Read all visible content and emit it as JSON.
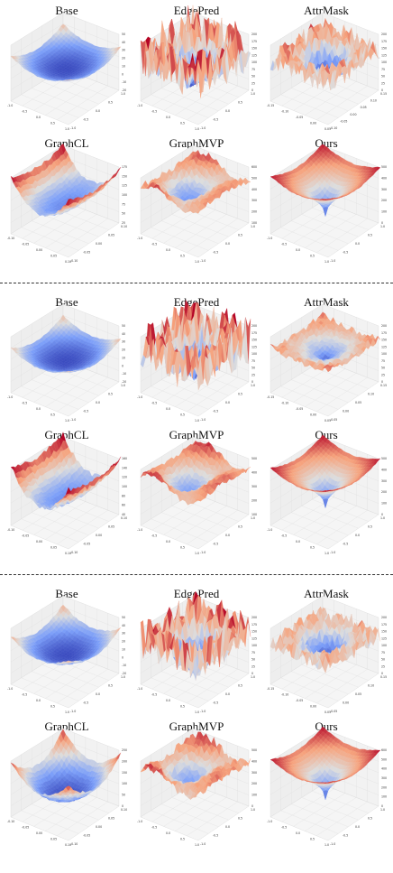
{
  "sections": [
    {
      "panels": [
        {
          "title": "Base",
          "shape": "bowl",
          "depth": 0.35,
          "rough": 0.05,
          "rimRed": 0.25,
          "yticks": [
            "50",
            "40",
            "30",
            "20",
            "10",
            "0",
            "-10",
            "-20"
          ],
          "xticks": [
            "-1.0",
            "-0.5",
            "0.0",
            "0.5",
            "1.0"
          ],
          "zticks": [
            "1.0",
            "0.5",
            "0.0",
            "-0.5",
            "-1.0"
          ]
        },
        {
          "title": "EdgePred",
          "shape": "spiky",
          "depth": 0.85,
          "rough": 0.9,
          "rimRed": 1.0,
          "yticks": [
            "200",
            "175",
            "150",
            "125",
            "100",
            "75",
            "50",
            "25",
            "0"
          ],
          "xticks": [
            "-1.0",
            "-0.5",
            "0.0",
            "0.5",
            "1.0"
          ],
          "zticks": [
            "1.0",
            "0.5",
            "0.0",
            "-0.5",
            "-1.0"
          ]
        },
        {
          "title": "AttrMask",
          "shape": "spiky",
          "depth": 0.6,
          "rough": 0.6,
          "rimRed": 0.85,
          "yticks": [
            "200",
            "175",
            "150",
            "125",
            "100",
            "75",
            "50",
            "25",
            "0"
          ],
          "xticks": [
            "-0.15",
            "-0.10",
            "-0.05",
            "0.00",
            "0.05"
          ],
          "zticks": [
            "0.15",
            "0.10",
            "0.05",
            "0.00",
            "-0.05",
            "-0.10"
          ]
        },
        {
          "title": "GraphCL",
          "shape": "saddle",
          "depth": 0.7,
          "rough": 0.08,
          "rimRed": 0.9,
          "yticks": [
            "175",
            "150",
            "125",
            "100",
            "75",
            "50",
            "25"
          ],
          "xticks": [
            "-0.10",
            "-0.05",
            "0.00",
            "0.05",
            "0.10"
          ],
          "zticks": [
            "0.10",
            "0.05",
            "0.00",
            "-0.05",
            "-0.10"
          ]
        },
        {
          "title": "GraphMVP",
          "shape": "wavy",
          "depth": 0.7,
          "rough": 0.15,
          "rimRed": 0.85,
          "yticks": [
            "600",
            "500",
            "400",
            "300",
            "200",
            "100"
          ],
          "xticks": [
            "-1.0",
            "-0.5",
            "0.0",
            "0.5",
            "1.0"
          ],
          "zticks": [
            "1.0",
            "0.5",
            "0.0",
            "-0.5",
            "-1.0"
          ]
        },
        {
          "title": "Ours",
          "shape": "cone",
          "depth": 0.85,
          "rough": 0.02,
          "rimRed": 0.95,
          "yticks": [
            "500",
            "400",
            "300",
            "200",
            "100",
            "0"
          ],
          "xticks": [
            "-1.0",
            "-0.5",
            "0.0",
            "0.5",
            "1.0"
          ],
          "zticks": [
            "1.0",
            "0.5",
            "0.0",
            "-0.5",
            "-1.0"
          ]
        }
      ]
    },
    {
      "panels": [
        {
          "title": "Base",
          "shape": "bowl",
          "depth": 0.35,
          "rough": 0.05,
          "rimRed": 0.25,
          "yticks": [
            "50",
            "40",
            "30",
            "20",
            "10",
            "0",
            "-10",
            "-20"
          ],
          "xticks": [
            "-1.0",
            "-0.5",
            "0.0",
            "0.5",
            "1.0"
          ],
          "zticks": [
            "1.0",
            "0.5",
            "0.0",
            "-0.5",
            "-1.0"
          ]
        },
        {
          "title": "EdgePred",
          "shape": "spiky",
          "depth": 0.85,
          "rough": 0.9,
          "rimRed": 1.0,
          "yticks": [
            "200",
            "175",
            "150",
            "125",
            "100",
            "75",
            "50",
            "25",
            "0"
          ],
          "xticks": [
            "-1.0",
            "-0.5",
            "0.0",
            "0.5",
            "1.0"
          ],
          "zticks": [
            "1.0",
            "0.5",
            "0.0",
            "-0.5",
            "-1.0"
          ]
        },
        {
          "title": "AttrMask",
          "shape": "cone",
          "depth": 0.4,
          "rough": 0.25,
          "rimRed": 0.6,
          "yticks": [
            "200",
            "175",
            "150",
            "125",
            "100",
            "75",
            "50",
            "25",
            "0"
          ],
          "xticks": [
            "-0.15",
            "-0.10",
            "-0.05",
            "0.00",
            "0.05"
          ],
          "zticks": [
            "0.15",
            "0.10",
            "0.05",
            "0.00",
            "-0.05"
          ]
        },
        {
          "title": "GraphCL",
          "shape": "saddle",
          "depth": 0.8,
          "rough": 0.1,
          "rimRed": 1.0,
          "yticks": [
            "160",
            "140",
            "120",
            "100",
            "80",
            "60",
            "40"
          ],
          "xticks": [
            "-0.10",
            "-0.05",
            "0.00",
            "0.05",
            "0.10"
          ],
          "zticks": [
            "0.10",
            "0.05",
            "0.00",
            "-0.05",
            "-0.10"
          ]
        },
        {
          "title": "GraphMVP",
          "shape": "wavy",
          "depth": 0.85,
          "rough": 0.1,
          "rimRed": 0.95,
          "yticks": [
            "500",
            "400",
            "300",
            "200",
            "100"
          ],
          "xticks": [
            "-1.0",
            "-0.5",
            "0.0",
            "0.5",
            "1.0"
          ],
          "zticks": [
            "1.0",
            "0.5",
            "0.0",
            "-0.5",
            "-1.0"
          ]
        },
        {
          "title": "Ours",
          "shape": "cone",
          "depth": 0.85,
          "rough": 0.02,
          "rimRed": 0.95,
          "yticks": [
            "500",
            "400",
            "300",
            "200",
            "100",
            "0"
          ],
          "xticks": [
            "-1.0",
            "-0.5",
            "0.0",
            "0.5",
            "1.0"
          ],
          "zticks": [
            "1.0",
            "0.5",
            "0.0",
            "-0.5",
            "-1.0"
          ]
        }
      ]
    },
    {
      "panels": [
        {
          "title": "Base",
          "shape": "bowl",
          "depth": 0.45,
          "rough": 0.06,
          "rimRed": 0.35,
          "yticks": [
            "50",
            "40",
            "30",
            "20",
            "10",
            "0",
            "-10",
            "-20"
          ],
          "xticks": [
            "-1.0",
            "-0.5",
            "0.0",
            "0.5",
            "1.0"
          ],
          "zticks": [
            "1.0",
            "0.5",
            "0.0",
            "-0.5",
            "-1.0"
          ]
        },
        {
          "title": "EdgePred",
          "shape": "spiky",
          "depth": 0.8,
          "rough": 0.85,
          "rimRed": 1.0,
          "yticks": [
            "200",
            "175",
            "150",
            "125",
            "100",
            "75",
            "50",
            "25",
            "0"
          ],
          "xticks": [
            "-1.0",
            "-0.5",
            "0.0",
            "0.5",
            "1.0"
          ],
          "zticks": [
            "1.0",
            "0.5",
            "0.0",
            "-0.5",
            "-1.0"
          ]
        },
        {
          "title": "AttrMask",
          "shape": "spiky",
          "depth": 0.55,
          "rough": 0.5,
          "rimRed": 0.8,
          "yticks": [
            "200",
            "175",
            "150",
            "125",
            "100",
            "75",
            "50",
            "25",
            "0"
          ],
          "xticks": [
            "-0.15",
            "-0.10",
            "-0.05",
            "0.00",
            "0.05"
          ],
          "zticks": [
            "0.15",
            "0.10",
            "0.05",
            "0.00",
            "-0.05"
          ]
        },
        {
          "title": "GraphCL",
          "shape": "bowl",
          "depth": 0.75,
          "rough": 0.06,
          "rimRed": 0.85,
          "yticks": [
            "250",
            "200",
            "150",
            "100",
            "50",
            "0"
          ],
          "xticks": [
            "-0.10",
            "-0.05",
            "0.00",
            "0.05",
            "0.10"
          ],
          "zticks": [
            "0.10",
            "0.05",
            "0.00",
            "-0.05",
            "-0.10"
          ]
        },
        {
          "title": "GraphMVP",
          "shape": "wavy",
          "depth": 0.75,
          "rough": 0.2,
          "rimRed": 0.9,
          "yticks": [
            "500",
            "400",
            "300",
            "200",
            "100",
            "0"
          ],
          "xticks": [
            "-1.0",
            "-0.5",
            "0.0",
            "0.5",
            "1.0"
          ],
          "zticks": [
            "1.0",
            "0.5",
            "0.0",
            "-0.5",
            "-1.0"
          ]
        },
        {
          "title": "Ours",
          "shape": "cone",
          "depth": 0.85,
          "rough": 0.02,
          "rimRed": 0.95,
          "yticks": [
            "600",
            "500",
            "400",
            "300",
            "200",
            "100",
            "0"
          ],
          "xticks": [
            "-1.0",
            "-0.5",
            "0.0",
            "0.5",
            "1.0"
          ],
          "zticks": [
            "1.0",
            "0.5",
            "0.0",
            "-0.5",
            "-1.0"
          ]
        }
      ]
    }
  ]
}
